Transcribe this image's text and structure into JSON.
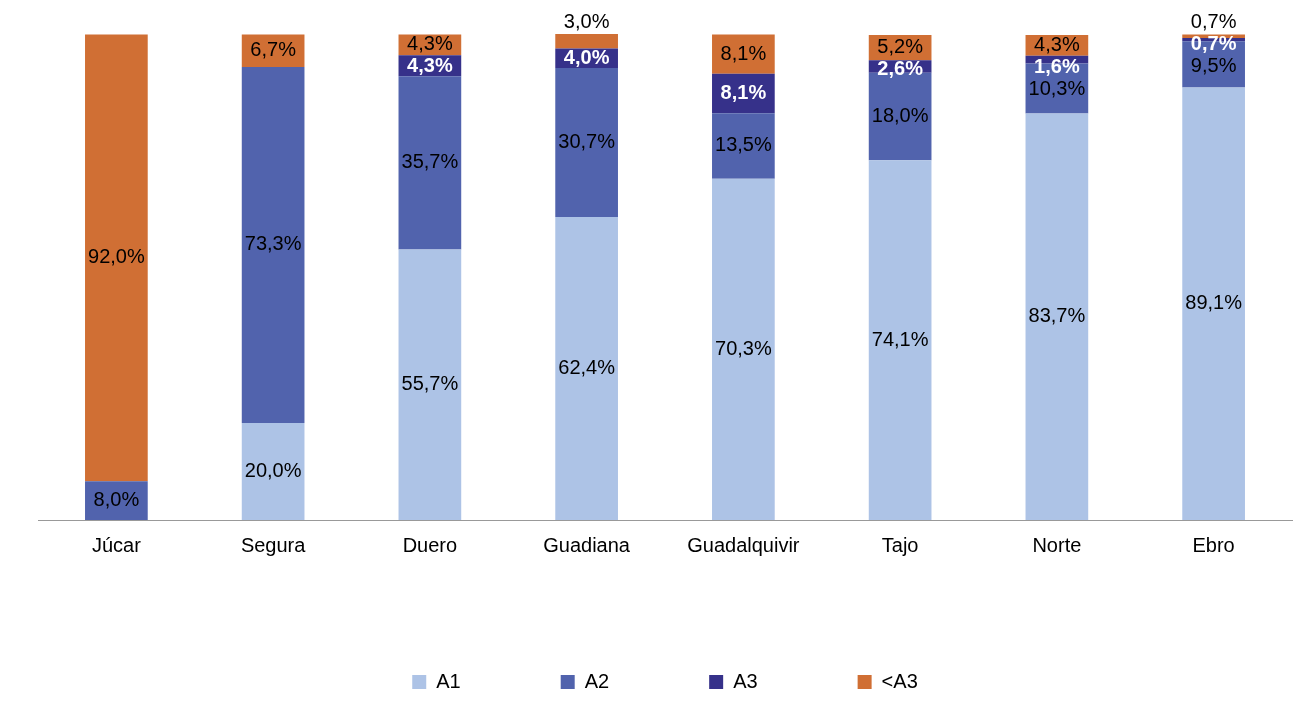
{
  "chart_data": {
    "type": "bar",
    "stacked": true,
    "legend": "bottom",
    "grid": false,
    "tick_labels": "x",
    "categories": [
      "Júcar",
      "Segura",
      "Duero",
      "Guadiana",
      "Guadalquivir",
      "Tajo",
      "Norte",
      "Ebro"
    ],
    "series": [
      {
        "name": "A1",
        "color": "#adc3e6",
        "values": [
          null,
          20.0,
          55.7,
          62.4,
          70.3,
          74.1,
          83.7,
          89.1
        ],
        "value_labels": [
          null,
          "20,0%",
          "55,7%",
          "62,4%",
          "70,3%",
          "74,1%",
          "83,7%",
          "89,1%"
        ]
      },
      {
        "name": "A2",
        "color": "#5163ad",
        "values": [
          8.0,
          73.3,
          35.7,
          30.7,
          13.5,
          18.0,
          10.3,
          9.5
        ],
        "value_labels": [
          "8,0%",
          "73,3%",
          "35,7%",
          "30,7%",
          "13,5%",
          "18,0%",
          "10,3%",
          "9,5%"
        ]
      },
      {
        "name": "A3",
        "color": "#36318a",
        "values": [
          null,
          null,
          4.3,
          4.0,
          8.1,
          2.6,
          1.6,
          0.7
        ],
        "value_labels": [
          null,
          null,
          "4,3%",
          "4,0%",
          "8,1%",
          "2,6%",
          "1,6%",
          "0,7%"
        ]
      },
      {
        "name": "<A3",
        "color": "#d06f34",
        "values": [
          92.0,
          6.7,
          4.3,
          3.0,
          8.1,
          5.2,
          4.3,
          0.7
        ],
        "value_labels": [
          "92,0%",
          "6,7%",
          "4,3%",
          "3,0%",
          "8,1%",
          "5,2%",
          "4,3%",
          "0,7%"
        ]
      }
    ]
  }
}
